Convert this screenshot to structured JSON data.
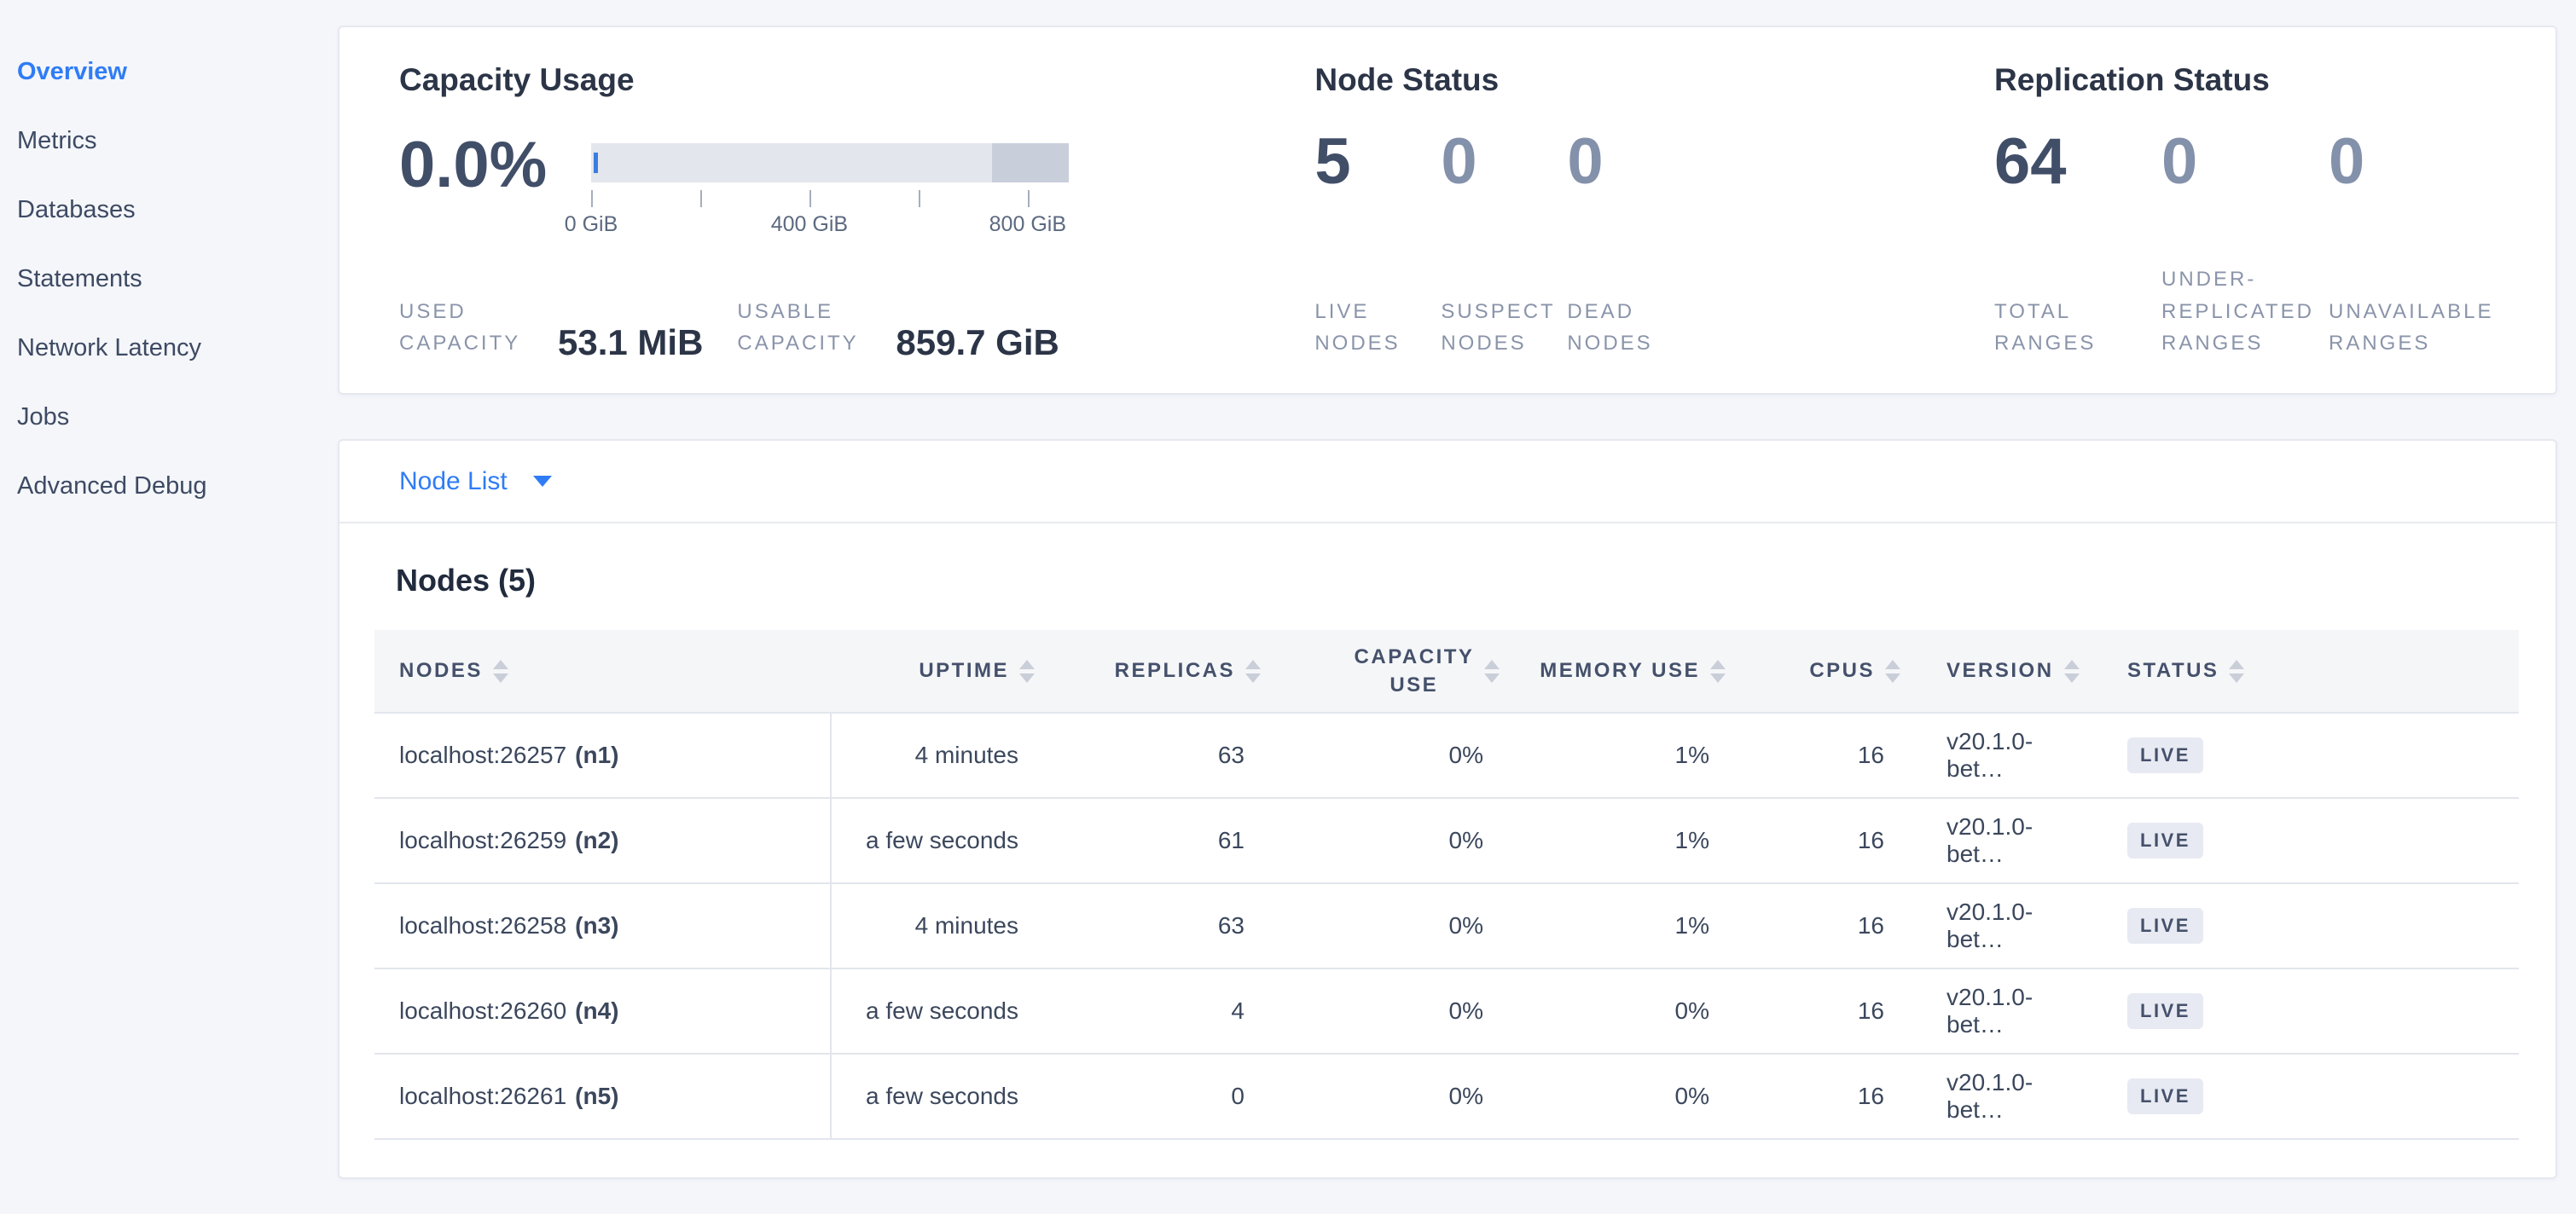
{
  "sidebar": {
    "items": [
      {
        "label": "Overview",
        "active": true
      },
      {
        "label": "Metrics",
        "active": false
      },
      {
        "label": "Databases",
        "active": false
      },
      {
        "label": "Statements",
        "active": false
      },
      {
        "label": "Network Latency",
        "active": false
      },
      {
        "label": "Jobs",
        "active": false
      },
      {
        "label": "Advanced Debug",
        "active": false
      }
    ]
  },
  "capacity": {
    "title": "Capacity Usage",
    "percent": "0.0%",
    "used_label": "USED CAPACITY",
    "used_value": "53.1 MiB",
    "usable_label": "USABLE CAPACITY",
    "usable_value": "859.7 GiB",
    "bar": {
      "dark_segment_start_percent": 84,
      "used_segment_percent": 0.1,
      "tick_positions_percent": [
        0,
        22.9,
        45.7,
        68.6,
        91.4
      ],
      "axis_labels": [
        {
          "text": "0 GiB",
          "pos": 0
        },
        {
          "text": "400 GiB",
          "pos": 45.7
        },
        {
          "text": "800 GiB",
          "pos": 91.4
        }
      ]
    }
  },
  "node_status": {
    "title": "Node Status",
    "stats": [
      {
        "value": "5",
        "label": "LIVE NODES"
      },
      {
        "value": "0",
        "label": "SUSPECT NODES"
      },
      {
        "value": "0",
        "label": "DEAD NODES"
      }
    ]
  },
  "replication": {
    "title": "Replication Status",
    "stats": [
      {
        "value": "64",
        "label": "TOTAL RANGES"
      },
      {
        "value": "0",
        "label": "UNDER-REPLICATED RANGES"
      },
      {
        "value": "0",
        "label": "UNAVAILABLE RANGES"
      }
    ]
  },
  "node_list": {
    "toggle_label": "Node List"
  },
  "nodes_table": {
    "title": "Nodes (5)",
    "columns": [
      "NODES",
      "UPTIME",
      "REPLICAS",
      "CAPACITY USE",
      "MEMORY USE",
      "CPUS",
      "VERSION",
      "STATUS"
    ],
    "rows": [
      {
        "address": "localhost:26257",
        "node_id": "(n1)",
        "uptime": "4 minutes",
        "replicas": "63",
        "capacity_use": "0%",
        "memory_use": "1%",
        "cpus": "16",
        "version": "v20.1.0-bet…",
        "status": "LIVE"
      },
      {
        "address": "localhost:26259",
        "node_id": "(n2)",
        "uptime": "a few seconds",
        "replicas": "61",
        "capacity_use": "0%",
        "memory_use": "1%",
        "cpus": "16",
        "version": "v20.1.0-bet…",
        "status": "LIVE"
      },
      {
        "address": "localhost:26258",
        "node_id": "(n3)",
        "uptime": "4 minutes",
        "replicas": "63",
        "capacity_use": "0%",
        "memory_use": "1%",
        "cpus": "16",
        "version": "v20.1.0-bet…",
        "status": "LIVE"
      },
      {
        "address": "localhost:26260",
        "node_id": "(n4)",
        "uptime": "a few seconds",
        "replicas": "4",
        "capacity_use": "0%",
        "memory_use": "0%",
        "cpus": "16",
        "version": "v20.1.0-bet…",
        "status": "LIVE"
      },
      {
        "address": "localhost:26261",
        "node_id": "(n5)",
        "uptime": "a few seconds",
        "replicas": "0",
        "capacity_use": "0%",
        "memory_use": "0%",
        "cpus": "16",
        "version": "v20.1.0-bet…",
        "status": "LIVE"
      }
    ]
  },
  "chart_data": {
    "type": "bar",
    "title": "Capacity Usage",
    "percent_used": "0.0%",
    "used_capacity": "53.1 MiB",
    "usable_capacity": "859.7 GiB",
    "axis_tick_labels": [
      "0 GiB",
      "400 GiB",
      "800 GiB"
    ],
    "axis_ticks_gib": [
      0,
      200,
      400,
      600,
      800
    ],
    "axis_max_gib": 875,
    "segments": [
      {
        "name": "used",
        "from_percent": 0,
        "to_percent": 0.1,
        "color": "#3a7de2"
      },
      {
        "name": "usable-free",
        "from_percent": 0,
        "to_percent": 84,
        "color": "#e3e6ec"
      },
      {
        "name": "non-usable",
        "from_percent": 84,
        "to_percent": 100,
        "color": "#c9cedb"
      }
    ]
  },
  "colors": {
    "accent_blue": "#2f7cf6",
    "page_bg": "#f4f6fa",
    "dark_text": "#2c3547",
    "muted_text": "#8a94aa",
    "badge_bg": "#e7eaf2"
  }
}
